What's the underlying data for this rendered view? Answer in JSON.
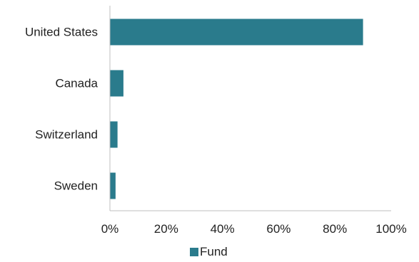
{
  "chart_data": {
    "type": "bar",
    "orientation": "horizontal",
    "categories": [
      "United States",
      "Canada",
      "Switzerland",
      "Sweden"
    ],
    "series": [
      {
        "name": "Fund",
        "values": [
          90,
          4.8,
          2.7,
          2.0
        ]
      }
    ],
    "xlim": [
      0,
      100
    ],
    "xticks": [
      "0%",
      "20%",
      "40%",
      "60%",
      "80%",
      "100%"
    ],
    "grid": false,
    "legend_position": "bottom",
    "colors": {
      "bar": "#2a7b8c",
      "axis": "#bfbfbf"
    }
  }
}
